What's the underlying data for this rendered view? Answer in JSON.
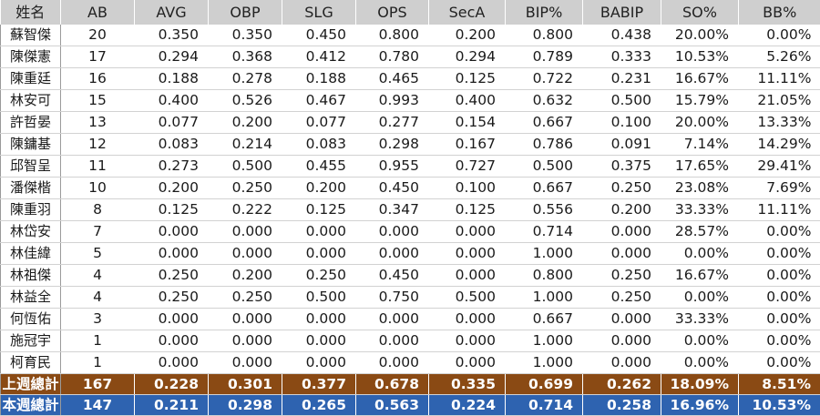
{
  "headers": [
    "姓名",
    "AB",
    "AVG",
    "OBP",
    "SLG",
    "OPS",
    "SecA",
    "BIP%",
    "BABIP",
    "SO%",
    "BB%"
  ],
  "rows": [
    [
      "蘇智傑",
      "20",
      "0.350",
      "0.350",
      "0.450",
      "0.800",
      "0.200",
      "0.800",
      "0.438",
      "20.00%",
      "0.00%"
    ],
    [
      "陳傑憲",
      "17",
      "0.294",
      "0.368",
      "0.412",
      "0.780",
      "0.294",
      "0.789",
      "0.333",
      "10.53%",
      "5.26%"
    ],
    [
      "陳重廷",
      "16",
      "0.188",
      "0.278",
      "0.188",
      "0.465",
      "0.125",
      "0.722",
      "0.231",
      "16.67%",
      "11.11%"
    ],
    [
      "林安可",
      "15",
      "0.400",
      "0.526",
      "0.467",
      "0.993",
      "0.400",
      "0.632",
      "0.500",
      "15.79%",
      "21.05%"
    ],
    [
      "許哲晏",
      "13",
      "0.077",
      "0.200",
      "0.077",
      "0.277",
      "0.154",
      "0.667",
      "0.100",
      "20.00%",
      "13.33%"
    ],
    [
      "陳鏞基",
      "12",
      "0.083",
      "0.214",
      "0.083",
      "0.298",
      "0.167",
      "0.786",
      "0.091",
      "7.14%",
      "14.29%"
    ],
    [
      "邱智呈",
      "11",
      "0.273",
      "0.500",
      "0.455",
      "0.955",
      "0.727",
      "0.500",
      "0.375",
      "17.65%",
      "29.41%"
    ],
    [
      "潘傑楷",
      "10",
      "0.200",
      "0.250",
      "0.200",
      "0.450",
      "0.100",
      "0.667",
      "0.250",
      "23.08%",
      "7.69%"
    ],
    [
      "陳重羽",
      "8",
      "0.125",
      "0.222",
      "0.125",
      "0.347",
      "0.125",
      "0.556",
      "0.200",
      "33.33%",
      "11.11%"
    ],
    [
      "林岱安",
      "7",
      "0.000",
      "0.000",
      "0.000",
      "0.000",
      "0.000",
      "0.714",
      "0.000",
      "28.57%",
      "0.00%"
    ],
    [
      "林佳緯",
      "5",
      "0.000",
      "0.000",
      "0.000",
      "0.000",
      "0.000",
      "1.000",
      "0.000",
      "0.00%",
      "0.00%"
    ],
    [
      "林祖傑",
      "4",
      "0.250",
      "0.200",
      "0.250",
      "0.450",
      "0.000",
      "0.800",
      "0.250",
      "16.67%",
      "0.00%"
    ],
    [
      "林益全",
      "4",
      "0.250",
      "0.250",
      "0.500",
      "0.750",
      "0.500",
      "1.000",
      "0.250",
      "0.00%",
      "0.00%"
    ],
    [
      "何恆佑",
      "3",
      "0.000",
      "0.000",
      "0.000",
      "0.000",
      "0.000",
      "0.667",
      "0.000",
      "33.33%",
      "0.00%"
    ],
    [
      "施冠宇",
      "1",
      "0.000",
      "0.000",
      "0.000",
      "0.000",
      "0.000",
      "1.000",
      "0.000",
      "0.00%",
      "0.00%"
    ],
    [
      "柯育民",
      "1",
      "0.000",
      "0.000",
      "0.000",
      "0.000",
      "0.000",
      "1.000",
      "0.000",
      "0.00%",
      "0.00%"
    ]
  ],
  "totals": [
    [
      "上週總計",
      "167",
      "0.228",
      "0.301",
      "0.377",
      "0.678",
      "0.335",
      "0.699",
      "0.262",
      "18.09%",
      "8.51%"
    ],
    [
      "本週總計",
      "147",
      "0.211",
      "0.298",
      "0.265",
      "0.563",
      "0.224",
      "0.714",
      "0.258",
      "16.96%",
      "10.53%"
    ]
  ],
  "colors": {
    "header_bg": "#cfcfcf",
    "last_week_bg": "#8a4a14",
    "this_week_bg": "#2e63b0"
  }
}
